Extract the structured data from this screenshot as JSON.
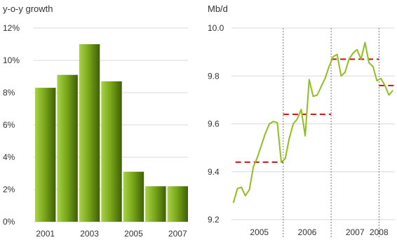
{
  "chart_data": [
    {
      "type": "bar",
      "ylabel": "y-o-y growth",
      "ylim": [
        0,
        12
      ],
      "yticks": [
        "0%",
        "2%",
        "4%",
        "6%",
        "8%",
        "10%",
        "12%"
      ],
      "ytick_values": [
        0,
        2,
        4,
        6,
        8,
        10,
        12
      ],
      "categories": [
        "2001",
        "2002",
        "2003",
        "2004",
        "2005",
        "2006",
        "2007"
      ],
      "xtick_labels": [
        "2001",
        "",
        "2003",
        "",
        "2005",
        "",
        "2007"
      ],
      "values": [
        8.3,
        9.1,
        11.0,
        8.7,
        3.1,
        2.2,
        2.2
      ],
      "colors": {
        "bar": "#7aa81a",
        "bar_light": "#a9d24a",
        "bar_dark": "#3f5f06",
        "grid": "#d9d9d9"
      },
      "grid": true
    },
    {
      "type": "line",
      "ylabel": "Mb/d",
      "ylim": [
        9.2,
        10.0
      ],
      "yticks": [
        "9.2",
        "9.4",
        "9.6",
        "9.8",
        "10.0"
      ],
      "ytick_values": [
        9.2,
        9.4,
        9.6,
        9.8,
        10.0
      ],
      "xlim": [
        2004.917,
        2008.333
      ],
      "year_labels": [
        {
          "label": "2005",
          "center": 2005.5
        },
        {
          "label": "2006",
          "center": 2006.5
        },
        {
          "label": "2007",
          "center": 2007.5
        },
        {
          "label": "2008",
          "center": 2008.0
        }
      ],
      "year_dividers": [
        2006,
        2007,
        2008
      ],
      "series": [
        {
          "values": [
            9.27,
            9.33,
            9.335,
            9.3,
            9.325,
            9.42,
            9.46,
            9.51,
            9.56,
            9.6,
            9.61,
            9.605,
            9.44,
            9.455,
            9.54,
            9.6,
            9.62,
            9.66,
            9.55,
            9.785,
            9.715,
            9.72,
            9.755,
            9.79,
            9.84,
            9.88,
            9.89,
            9.8,
            9.815,
            9.87,
            9.895,
            9.91,
            9.87,
            9.94,
            9.855,
            9.84,
            9.78,
            9.79,
            9.76,
            9.72,
            9.74
          ],
          "x_start": 2004.958,
          "x_step": 0.08333
        }
      ],
      "annual_averages": [
        {
          "year": 2005,
          "value": 9.44
        },
        {
          "year": 2006,
          "value": 9.64
        },
        {
          "year": 2007,
          "value": 9.87
        },
        {
          "year": 2008,
          "value": 9.76
        }
      ],
      "colors": {
        "line": "#8fbf1f",
        "average": "#cc1111",
        "grid": "#d9d9d9",
        "divider": "#555555"
      },
      "grid": true
    }
  ]
}
